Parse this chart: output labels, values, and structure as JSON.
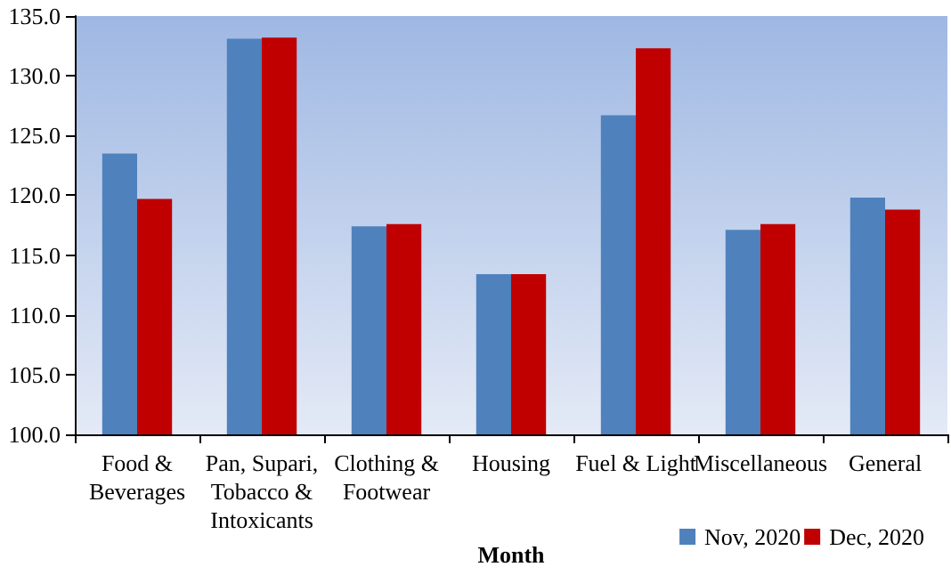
{
  "chart_data": {
    "type": "bar",
    "xlabel": "Month",
    "categories": [
      "Food &\nBeverages",
      "Pan, Supari,\nTobacco &\nIntoxicants",
      "Clothing &\nFootwear",
      "Housing",
      "Fuel & Light",
      "Miscellaneous",
      "General"
    ],
    "series": [
      {
        "name": "Nov, 2020",
        "color": "#4f81bd",
        "values": [
          123.5,
          133.1,
          117.4,
          113.4,
          126.7,
          117.1,
          119.8
        ]
      },
      {
        "name": "Dec, 2020",
        "color": "#c00000",
        "values": [
          119.7,
          133.2,
          117.6,
          113.4,
          132.3,
          117.6,
          118.8
        ]
      }
    ],
    "ylim": [
      100,
      135
    ],
    "yticks": [
      {
        "value": 100,
        "label": "100.0"
      },
      {
        "value": 105,
        "label": "105.0"
      },
      {
        "value": 110,
        "label": "110.0"
      },
      {
        "value": 115,
        "label": "115.0"
      },
      {
        "value": 120,
        "label": "120.0"
      },
      {
        "value": 125,
        "label": "125.0"
      },
      {
        "value": 130,
        "label": "130.0"
      },
      {
        "value": 135,
        "label": "135.0"
      }
    ],
    "grid": false,
    "legend": "bottom right"
  }
}
